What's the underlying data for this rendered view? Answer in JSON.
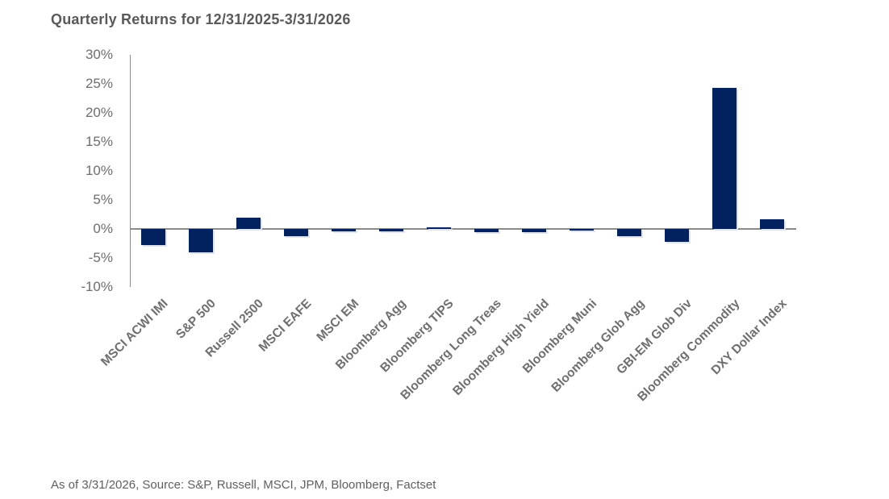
{
  "header": {
    "title": "Quarterly Returns for 12/31/2025-3/31/2026"
  },
  "footer": {
    "text": "As of 3/31/2026, Source: S&P, Russell, MSCI, JPM, Bloomberg, Factset"
  },
  "colors": {
    "bar": "#02215f",
    "bar_shadow": "#dde3f1",
    "axis_line": "#8a8a8a",
    "title_text": "#595959",
    "label_text": "#6e6e6e",
    "footer_text": "#5f5f5f"
  },
  "chart_data": {
    "type": "bar",
    "title": "Quarterly Returns for 12/31/2025-3/31/2026",
    "categories": [
      "MSCI ACWI IMI",
      "S&P 500",
      "Russell 2500",
      "MSCI EAFE",
      "MSCI EM",
      "Bloomberg Agg",
      "Bloomberg TIPS",
      "Bloomberg Long Treas",
      "Bloomberg High Yield",
      "Bloomberg Muni",
      "Bloomberg Glob Agg",
      "GBI-EM Glob Div",
      "Bloomberg Commodity",
      "DXY Dollar Index"
    ],
    "values": [
      -2.8,
      -4.1,
      1.9,
      -1.3,
      -0.4,
      -0.4,
      0.3,
      -0.6,
      -0.5,
      -0.3,
      -1.2,
      -2.2,
      24.4,
      1.6
    ],
    "xlabel": "",
    "ylabel": "",
    "ylim": [
      -10,
      30
    ],
    "ytick_step": 5,
    "ytick_suffix": "%",
    "yticklabels": [
      "30%",
      "25%",
      "20%",
      "15%",
      "10%",
      "5%",
      "0%",
      "-5%",
      "-10%"
    ],
    "grid": false,
    "legend": "none",
    "source_note": "As of 3/31/2026, Source: S&P, Russell, MSCI, JPM, Bloomberg, Factset"
  }
}
